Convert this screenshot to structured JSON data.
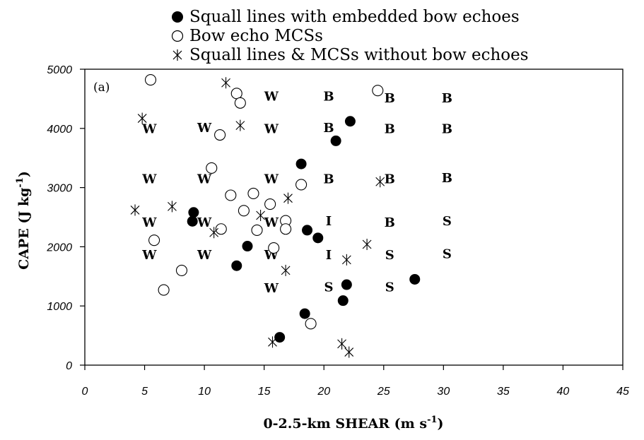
{
  "chart_data": {
    "type": "scatter",
    "panel_label": "(a)",
    "xlabel": "0-2.5-km SHEAR (m s",
    "xlabel_sup": "-1",
    "xlabel_close": ")",
    "ylabel": "CAPE (J kg",
    "ylabel_sup": "-1",
    "ylabel_close": ")",
    "xlim": [
      0,
      45
    ],
    "ylim": [
      0,
      5000
    ],
    "xticks": [
      0,
      5,
      10,
      15,
      20,
      25,
      30,
      35,
      40,
      45
    ],
    "yticks": [
      0,
      1000,
      2000,
      3000,
      4000,
      5000
    ],
    "grid": false,
    "legend_position": "top",
    "series": [
      {
        "name": "Squall lines with embedded bow echoes",
        "marker": "filled-circle",
        "points": [
          [
            22.2,
            4120
          ],
          [
            21.0,
            3790
          ],
          [
            18.1,
            3400
          ],
          [
            9.1,
            2580
          ],
          [
            9.0,
            2430
          ],
          [
            18.6,
            2280
          ],
          [
            19.5,
            2150
          ],
          [
            13.6,
            2010
          ],
          [
            12.7,
            1680
          ],
          [
            27.6,
            1450
          ],
          [
            21.9,
            1360
          ],
          [
            21.6,
            1090
          ],
          [
            18.4,
            870
          ],
          [
            16.3,
            470
          ]
        ]
      },
      {
        "name": "Bow echo MCSs",
        "marker": "open-circle",
        "points": [
          [
            5.5,
            4820
          ],
          [
            12.7,
            4590
          ],
          [
            13.0,
            4430
          ],
          [
            24.5,
            4640
          ],
          [
            11.3,
            3890
          ],
          [
            10.6,
            3330
          ],
          [
            18.1,
            3050
          ],
          [
            14.1,
            2900
          ],
          [
            12.2,
            2870
          ],
          [
            15.5,
            2720
          ],
          [
            13.3,
            2610
          ],
          [
            16.8,
            2440
          ],
          [
            11.4,
            2300
          ],
          [
            14.4,
            2280
          ],
          [
            16.8,
            2300
          ],
          [
            5.8,
            2110
          ],
          [
            15.8,
            1980
          ],
          [
            8.1,
            1600
          ],
          [
            6.6,
            1270
          ],
          [
            18.9,
            700
          ]
        ]
      },
      {
        "name": "Squall lines & MCSs without bow echoes",
        "marker": "asterisk",
        "points": [
          [
            11.8,
            4770
          ],
          [
            4.8,
            4170
          ],
          [
            13.0,
            4050
          ],
          [
            24.7,
            3100
          ],
          [
            17.0,
            2820
          ],
          [
            7.3,
            2680
          ],
          [
            4.2,
            2620
          ],
          [
            14.7,
            2530
          ],
          [
            10.8,
            2240
          ],
          [
            23.6,
            2040
          ],
          [
            16.8,
            1600
          ],
          [
            21.9,
            1780
          ],
          [
            15.7,
            390
          ],
          [
            21.5,
            360
          ],
          [
            22.1,
            220
          ]
        ]
      }
    ],
    "annotations": [
      {
        "text": "W",
        "x": 15.6,
        "y": 4470
      },
      {
        "text": "B",
        "x": 20.4,
        "y": 4470
      },
      {
        "text": "B",
        "x": 25.5,
        "y": 4440
      },
      {
        "text": "B",
        "x": 30.3,
        "y": 4440
      },
      {
        "text": "W",
        "x": 5.4,
        "y": 3920
      },
      {
        "text": "W",
        "x": 10.0,
        "y": 3940
      },
      {
        "text": "W",
        "x": 15.6,
        "y": 3920
      },
      {
        "text": "B",
        "x": 20.4,
        "y": 3940
      },
      {
        "text": "B",
        "x": 25.5,
        "y": 3920
      },
      {
        "text": "B",
        "x": 30.3,
        "y": 3920
      },
      {
        "text": "W",
        "x": 5.4,
        "y": 3070
      },
      {
        "text": "W",
        "x": 10.0,
        "y": 3070
      },
      {
        "text": "W",
        "x": 15.6,
        "y": 3070
      },
      {
        "text": "B",
        "x": 20.4,
        "y": 3070
      },
      {
        "text": "B",
        "x": 25.5,
        "y": 3070
      },
      {
        "text": "B",
        "x": 30.3,
        "y": 3090
      },
      {
        "text": "W",
        "x": 5.4,
        "y": 2340
      },
      {
        "text": "W",
        "x": 10.0,
        "y": 2340
      },
      {
        "text": "W",
        "x": 15.6,
        "y": 2340
      },
      {
        "text": "I",
        "x": 20.4,
        "y": 2360
      },
      {
        "text": "B",
        "x": 25.5,
        "y": 2340
      },
      {
        "text": "S",
        "x": 30.3,
        "y": 2360
      },
      {
        "text": "W",
        "x": 5.4,
        "y": 1790
      },
      {
        "text": "W",
        "x": 10.0,
        "y": 1790
      },
      {
        "text": "W",
        "x": 15.6,
        "y": 1790
      },
      {
        "text": "I",
        "x": 20.4,
        "y": 1790
      },
      {
        "text": "S",
        "x": 25.5,
        "y": 1790
      },
      {
        "text": "S",
        "x": 30.3,
        "y": 1810
      },
      {
        "text": "W",
        "x": 15.6,
        "y": 1230
      },
      {
        "text": "S",
        "x": 20.4,
        "y": 1250
      },
      {
        "text": "S",
        "x": 25.5,
        "y": 1250
      }
    ]
  }
}
